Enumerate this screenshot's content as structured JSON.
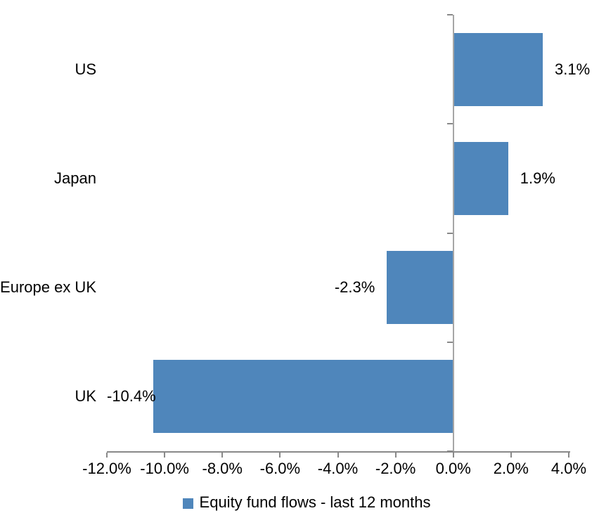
{
  "chart_data": {
    "type": "bar",
    "orientation": "horizontal",
    "title": "",
    "xlabel": "",
    "ylabel": "",
    "categories": [
      "US",
      "Japan",
      "Europe ex UK",
      "UK"
    ],
    "series": [
      {
        "name": "Equity fund flows - last 12 months",
        "values": [
          3.1,
          1.9,
          -2.3,
          -10.4
        ],
        "value_labels": [
          "3.1%",
          "1.9%",
          "-2.3%",
          "-10.4%"
        ]
      }
    ],
    "xlim": [
      -12,
      4
    ],
    "x_tick_step": 2,
    "x_tick_labels": [
      "-12.0%",
      "-10.0%",
      "-8.0%",
      "-6.0%",
      "-4.0%",
      "-2.0%",
      "0.0%",
      "2.0%",
      "4.0%"
    ],
    "grid": false,
    "legend_position": "bottom-center",
    "legend": [
      {
        "label": "Equity fund flows - last 12 months",
        "color": "#4F86BB"
      }
    ],
    "colors": {
      "bar": "#4F86BB",
      "axis_line": "#898989",
      "zero_line": "#A6A6A6",
      "text": "#000000",
      "background": "#FFFFFF"
    }
  }
}
